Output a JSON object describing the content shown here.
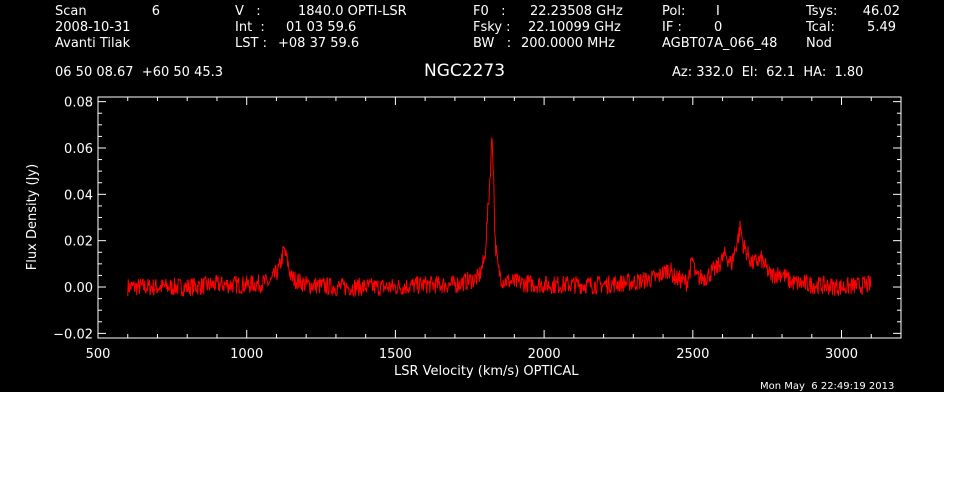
{
  "header": {
    "scan_label": "Scan",
    "scan_value": "6",
    "date": "2008-10-31",
    "observer": "Avanti Tilak",
    "v_label": "V   :",
    "v_value": "1840.0 OPTI-LSR",
    "int_label": "Int  :",
    "int_value": "01 03 59.6",
    "lst_label": "LST :",
    "lst_value": "+08 37 59.6",
    "f0_label": "F0   :",
    "f0_value": "22.23508 GHz",
    "fsky_label": "Fsky :",
    "fsky_value": "22.10099 GHz",
    "bw_label": "BW   :",
    "bw_value": "200.0000 MHz",
    "pol_label": "Pol:",
    "pol_value": "I",
    "if_label": "IF :",
    "if_value": "0",
    "project": "AGBT07A_066_48",
    "tsys_label": "Tsys:",
    "tsys_value": "46.02",
    "tcal_label": "Tcal:",
    "tcal_value": "5.49",
    "mode": "Nod",
    "coords": "06 50 08.67  +60 50 45.3",
    "source": "NGC2273",
    "pointing": "Az: 332.0  El:  62.1  HA:  1.80",
    "timestamp": "Mon May  6 22:49:19 2013"
  },
  "colors": {
    "background": "#000000",
    "foreground": "#ffffff",
    "spectrum": "#ff0000"
  },
  "chart_data": {
    "type": "line",
    "title": "NGC2273",
    "xlabel": "LSR Velocity (km/s) OPTICAL",
    "ylabel": "Flux Density (Jy)",
    "xlim": [
      500,
      3200
    ],
    "ylim": [
      -0.022,
      0.082
    ],
    "xticks": [
      500,
      1000,
      1500,
      2000,
      2500,
      3000
    ],
    "xtick_labels": [
      "500",
      "1000",
      "1500",
      "2000",
      "2500",
      "3000"
    ],
    "yticks": [
      -0.02,
      0.0,
      0.02,
      0.04,
      0.06,
      0.08
    ],
    "ytick_labels": [
      "−0.02",
      "0.00",
      "0.02",
      "0.04",
      "0.06",
      "0.08"
    ],
    "grid": false,
    "series": [
      {
        "color": "#ff0000",
        "x": [
          600,
          700,
          800,
          900,
          1000,
          1080,
          1110,
          1125,
          1135,
          1150,
          1200,
          1300,
          1400,
          1500,
          1600,
          1700,
          1780,
          1800,
          1815,
          1825,
          1830,
          1835,
          1845,
          1860,
          1900,
          2000,
          2100,
          2200,
          2300,
          2380,
          2420,
          2440,
          2480,
          2500,
          2510,
          2540,
          2580,
          2610,
          2630,
          2650,
          2660,
          2670,
          2700,
          2730,
          2760,
          2800,
          2830,
          2900,
          3000,
          3100
        ],
        "y": [
          0.0,
          0.0,
          0.0,
          0.001,
          0.001,
          0.002,
          0.008,
          0.016,
          0.012,
          0.004,
          0.001,
          0.0,
          0.0,
          0.0,
          0.001,
          0.001,
          0.004,
          0.012,
          0.04,
          0.065,
          0.05,
          0.02,
          0.008,
          0.003,
          0.002,
          0.001,
          0.001,
          0.001,
          0.002,
          0.004,
          0.008,
          0.004,
          0.002,
          0.012,
          0.004,
          0.004,
          0.008,
          0.014,
          0.01,
          0.02,
          0.026,
          0.018,
          0.01,
          0.012,
          0.005,
          0.006,
          0.002,
          0.001,
          0.0,
          0.001
        ]
      }
    ]
  }
}
